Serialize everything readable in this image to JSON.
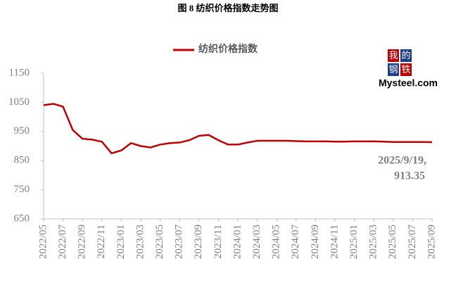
{
  "chart_data": {
    "type": "line",
    "title": "图 8   纺织价格指数走势图",
    "categories": [
      "2022/05",
      null,
      "2022/07",
      null,
      "2022/09",
      null,
      "2022/11",
      null,
      "2023/01",
      null,
      "2023/03",
      null,
      "2023/05",
      null,
      "2023/07",
      null,
      "2023/09",
      null,
      "2023/11",
      null,
      "2024/01",
      null,
      "2024/03",
      null,
      "2024/05",
      null,
      "2024/07",
      null,
      "2024/09",
      null,
      "2024/11",
      null,
      "2025/01",
      null,
      "2025/03",
      null,
      "2025/05",
      null,
      "2025/07",
      null,
      "2025/09"
    ],
    "series": [
      {
        "name": "纺织价格指数",
        "color": "#c00000",
        "values": [
          1040,
          1045,
          1035,
          955,
          925,
          922,
          915,
          875,
          885,
          910,
          900,
          895,
          905,
          910,
          912,
          920,
          935,
          938,
          920,
          905,
          905,
          912,
          918,
          918,
          918,
          918,
          917,
          916,
          916,
          916,
          915,
          915,
          916,
          916,
          916,
          915,
          914,
          914,
          914,
          914,
          913.35
        ]
      }
    ],
    "ylim": [
      650,
      1150
    ],
    "yticks": [
      650,
      750,
      850,
      950,
      1050,
      1150
    ],
    "grid": false,
    "legend": "top",
    "annotations": [
      "2025/9/19,",
      "913.35"
    ],
    "logo": {
      "chars": [
        "我",
        "的",
        "钢",
        "铁"
      ],
      "text": "Mysteel.com"
    }
  }
}
